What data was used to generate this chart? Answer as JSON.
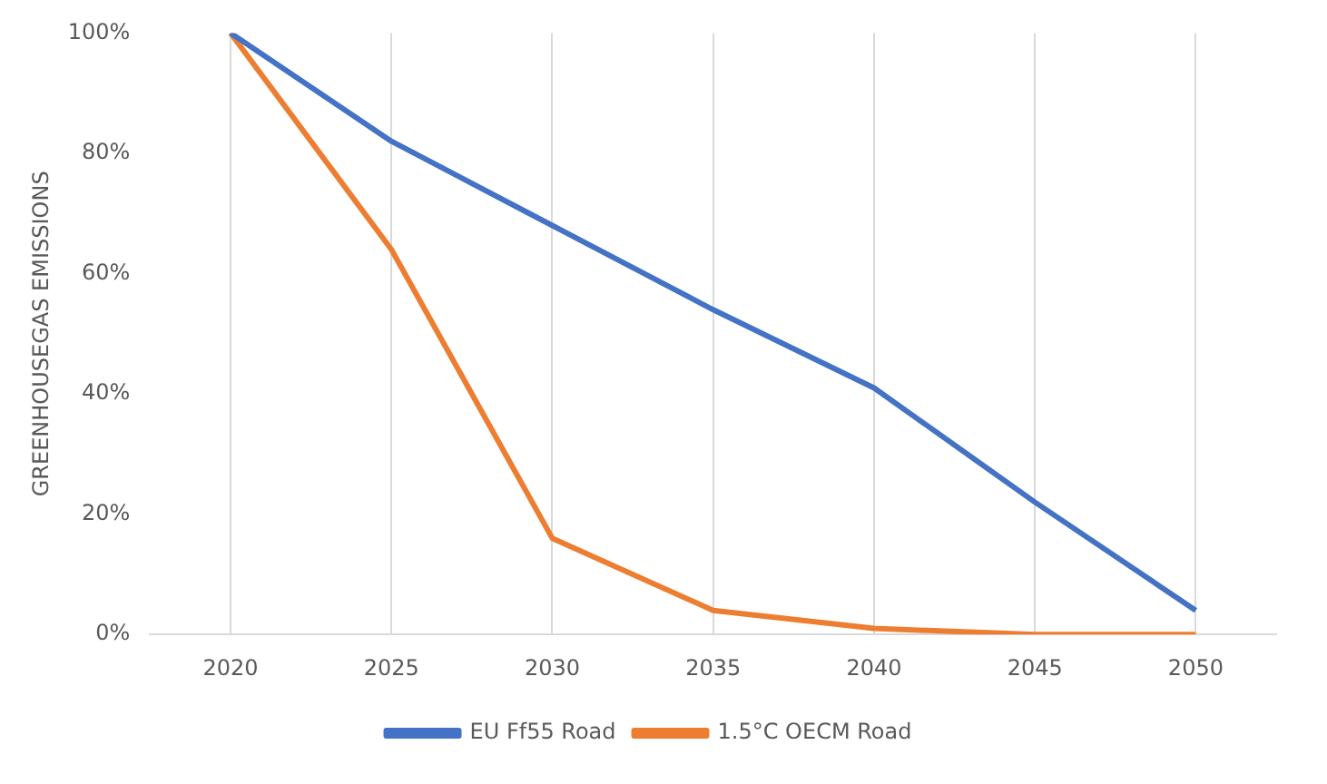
{
  "chart_data": {
    "type": "line",
    "ylabel": "GREENHOUSEGAS EMISSIONS",
    "categories": [
      "2020",
      "2025",
      "2030",
      "2035",
      "2040",
      "2045",
      "2050"
    ],
    "series": [
      {
        "name": "EU Ff55 Road",
        "color": "#4472c4",
        "values": [
          100,
          82,
          68,
          54,
          41,
          22,
          4
        ]
      },
      {
        "name": "1.5°C OECM Road",
        "color": "#ed7d31",
        "values": [
          100,
          64,
          16,
          4,
          1,
          0,
          0
        ]
      }
    ],
    "ylim": [
      0,
      100
    ],
    "yticks": [
      {
        "value": 0,
        "label": "0%"
      },
      {
        "value": 20,
        "label": "20%"
      },
      {
        "value": 40,
        "label": "40%"
      },
      {
        "value": 60,
        "label": "60%"
      },
      {
        "value": 80,
        "label": "80%"
      },
      {
        "value": 100,
        "label": "100%"
      }
    ],
    "grid": "x",
    "legend": "bottom",
    "marker": "none",
    "line_style": "solid"
  }
}
